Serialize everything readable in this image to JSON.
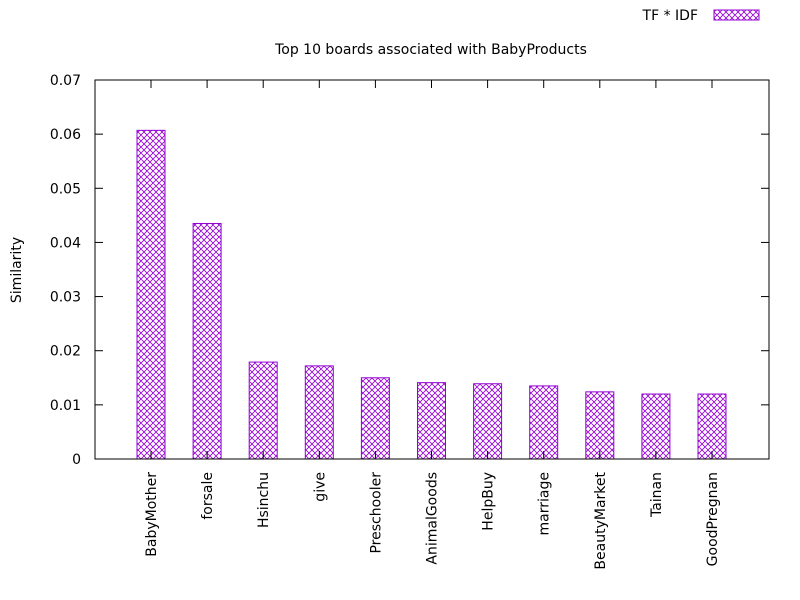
{
  "chart_data": {
    "type": "bar",
    "title": "Top 10 boards associated with BabyProducts",
    "xlabel": "",
    "ylabel": "Similarity",
    "ylim": [
      0,
      0.07
    ],
    "yticks": [
      "0",
      "0.01",
      "0.02",
      "0.03",
      "0.04",
      "0.05",
      "0.06",
      "0.07"
    ],
    "categories": [
      "BabyMother",
      "forsale",
      "Hsinchu",
      "give",
      "Preschooler",
      "AnimalGoods",
      "HelpBuy",
      "marriage",
      "BeautyMarket",
      "Tainan",
      "GoodPregnan"
    ],
    "series": [
      {
        "name": "TF * IDF",
        "values": [
          0.0607,
          0.0435,
          0.0179,
          0.0172,
          0.015,
          0.0141,
          0.0139,
          0.0135,
          0.0124,
          0.012,
          0.012
        ]
      }
    ],
    "grid": false,
    "legend_position": "top-right",
    "bar_color": "#9400d3",
    "bar_pattern": "crosshatch"
  }
}
